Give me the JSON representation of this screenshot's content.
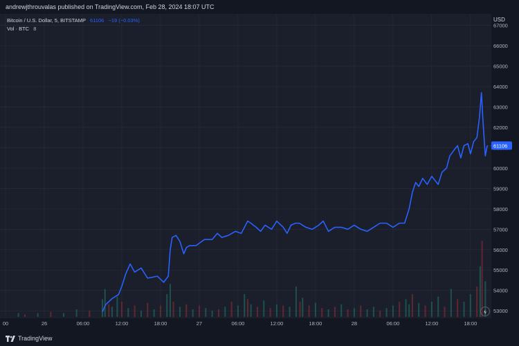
{
  "header": {
    "published_text": "andrewjthrouvalas published on TradingView.com, Feb 28, 2024 18:07 UTC"
  },
  "legend": {
    "symbol_text": "Bitcoin / U.S. Dollar, 5, BITSTAMP",
    "last_price": "61106",
    "change": "−19 (−0.03%)",
    "volume_label": "Vol · BTC",
    "volume_value": "8"
  },
  "axis": {
    "currency": "USD"
  },
  "footer": {
    "brand": "TradingView"
  },
  "colors": {
    "line": "#2962ff",
    "price_tag": "#2962ff",
    "grid": "#2a2e39",
    "vol_up": "#1e5a55",
    "vol_down": "#6b2a33"
  },
  "chart_data": {
    "type": "line",
    "title": "Bitcoin / U.S. Dollar, 5, BITSTAMP",
    "ylim": [
      52700,
      67500
    ],
    "y_ticks": [
      53000,
      54000,
      55000,
      56000,
      57000,
      58000,
      59000,
      60000,
      61000,
      62000,
      63000,
      64000,
      65000,
      66000,
      67000
    ],
    "x_ticks": [
      "00",
      "26",
      "06:00",
      "12:00",
      "18:00",
      "27",
      "06:00",
      "12:00",
      "18:00",
      "28",
      "06:00",
      "12:00",
      "18:00"
    ],
    "x_tick_hours": [
      0,
      6,
      12,
      18,
      24,
      30,
      36,
      42,
      48,
      54,
      60,
      66,
      72
    ],
    "grid": true,
    "last_price": 61106,
    "series": [
      {
        "x_hours": [
          15,
          15.5,
          16.5,
          17.5,
          18,
          18.6,
          19.3,
          20,
          21,
          22,
          23.5,
          24.5,
          25.2,
          25.5,
          25.8,
          26.4,
          27,
          27.6,
          28,
          28.5,
          29.5,
          30.8,
          32,
          32.8,
          33.5,
          34.5,
          35.6,
          36.5,
          37,
          37.5,
          38,
          38.8,
          39.5,
          40.2,
          41.2,
          42,
          43,
          43.6,
          44.2,
          44.9,
          45.5,
          46.5,
          47.5,
          48.5,
          49.2,
          50,
          51,
          52,
          53,
          54,
          55,
          56,
          57,
          58,
          59,
          60,
          61,
          61.8,
          62.5,
          63,
          63.5,
          64,
          64.6,
          65.3,
          66,
          67,
          67.6,
          68.3,
          68.8,
          69.5,
          70,
          70.5,
          71,
          71.6,
          72,
          72.5,
          73,
          73.4,
          73.7,
          73.9,
          74.3,
          74.6
        ],
        "values": [
          52950,
          53300,
          53600,
          53800,
          54200,
          54800,
          55300,
          54900,
          55100,
          54600,
          54700,
          54400,
          54700,
          56000,
          56600,
          56700,
          56400,
          55800,
          56100,
          56200,
          56200,
          56500,
          56500,
          56800,
          56600,
          56700,
          56900,
          56800,
          57100,
          57400,
          57300,
          57100,
          56900,
          57200,
          57000,
          57400,
          57100,
          56800,
          57200,
          57300,
          57300,
          57100,
          57000,
          57200,
          57400,
          56900,
          57100,
          57100,
          57000,
          57200,
          57000,
          56900,
          57100,
          57300,
          57300,
          57100,
          57300,
          57300,
          58000,
          58800,
          59300,
          59100,
          59500,
          59200,
          59600,
          59200,
          59800,
          60000,
          60600,
          60900,
          61100,
          60500,
          61100,
          61200,
          60700,
          61300,
          61500,
          62500,
          63700,
          62500,
          60600,
          61106
        ]
      }
    ],
    "volume": {
      "x_hours": [
        2,
        3,
        5,
        7,
        9,
        11,
        13,
        15,
        15.4,
        16,
        16.5,
        17.3,
        18,
        19,
        20,
        21,
        22,
        23,
        24,
        25,
        25.5,
        26,
        27,
        28,
        29,
        30,
        31,
        32,
        33,
        34,
        35,
        36,
        37,
        37.5,
        38,
        39,
        40,
        41,
        42,
        43,
        44,
        45,
        45.6,
        46,
        47,
        48,
        49,
        50,
        51,
        52,
        53,
        54,
        55,
        56,
        57,
        58,
        59,
        60,
        61,
        62,
        62.5,
        63,
        64,
        65,
        66,
        67,
        68,
        69,
        70,
        71,
        72,
        73,
        73.5,
        73.8,
        74.3
      ],
      "values": [
        3,
        2,
        3,
        4,
        3,
        6,
        5,
        14,
        22,
        10,
        8,
        16,
        12,
        7,
        9,
        5,
        11,
        6,
        9,
        18,
        26,
        12,
        8,
        10,
        6,
        9,
        7,
        5,
        6,
        8,
        12,
        9,
        18,
        14,
        10,
        8,
        13,
        7,
        10,
        9,
        8,
        24,
        12,
        15,
        9,
        11,
        7,
        6,
        8,
        10,
        6,
        7,
        9,
        6,
        8,
        5,
        7,
        9,
        12,
        14,
        10,
        18,
        11,
        9,
        12,
        16,
        8,
        22,
        14,
        12,
        18,
        24,
        40,
        60,
        28
      ],
      "up": [
        true,
        false,
        true,
        false,
        true,
        true,
        false,
        true,
        true,
        false,
        true,
        true,
        false,
        true,
        false,
        true,
        false,
        true,
        false,
        true,
        true,
        false,
        true,
        false,
        true,
        false,
        true,
        true,
        false,
        true,
        false,
        true,
        true,
        false,
        true,
        false,
        true,
        false,
        true,
        false,
        true,
        true,
        false,
        true,
        false,
        true,
        false,
        true,
        false,
        true,
        false,
        true,
        false,
        true,
        true,
        false,
        true,
        true,
        false,
        true,
        true,
        false,
        true,
        false,
        true,
        true,
        false,
        true,
        false,
        true,
        true,
        false,
        true,
        false,
        true
      ]
    }
  }
}
